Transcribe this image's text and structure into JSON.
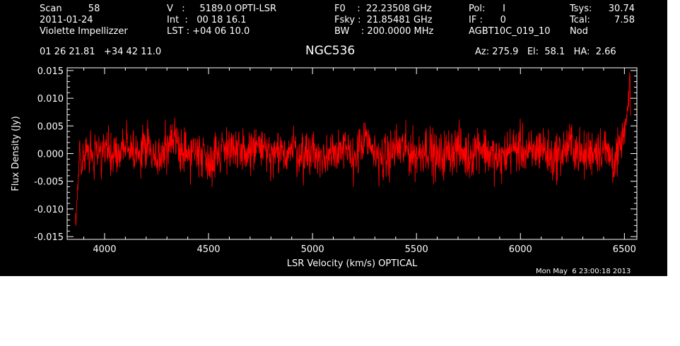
{
  "header": {
    "col1": [
      "Scan         58",
      "2011-01-24",
      "Violette Impellizzer"
    ],
    "col2": [
      "V   :     5189.0 OPTI-LSR",
      "Int  :   00 18 16.1",
      "LST : +04 06 10.0"
    ],
    "col3": [
      "F0    :  22.23508 GHz",
      "Fsky :  21.85481 GHz",
      "BW    : 200.0000 MHz"
    ],
    "col4": [
      "Pol:      I",
      "IF :      0",
      "AGBT10C_019_10"
    ],
    "col5_labels": [
      "Tsys:",
      "Tcal:",
      "Nod"
    ],
    "col5_values": [
      "30.74",
      "7.58",
      ""
    ],
    "coords": "01 26 21.81   +34 42 11.0",
    "source": "NGC536",
    "pointing": "Az: 275.9   El:  58.1   HA:  2.66"
  },
  "footer": {
    "timestamp": "Mon May  6 23:00:18 2013"
  },
  "colors": {
    "background": "#000000",
    "axes": "#ffffff",
    "trace": "#ff0000"
  },
  "chart_data": {
    "type": "line",
    "xlabel": "LSR Velocity (km/s) OPTICAL",
    "ylabel": "Flux Density (Jy)",
    "xlim": [
      3820,
      6560
    ],
    "ylim": [
      -0.0155,
      0.0155
    ],
    "x_ticks": [
      4000,
      4500,
      5000,
      5500,
      6000,
      6500
    ],
    "x_tick_labels": [
      "4000",
      "4500",
      "5000",
      "5500",
      "6000",
      "6500"
    ],
    "y_ticks": [
      0.015,
      0.01,
      0.005,
      0.0,
      -0.005,
      -0.01,
      -0.015
    ],
    "y_tick_labels": [
      "0.015",
      "0.010",
      "0.005",
      "0.000",
      "-0.005",
      "-0.010",
      "-0.015"
    ],
    "series": [
      {
        "x": [
          3860,
          3870,
          3880,
          3890,
          3900,
          3920,
          3950,
          4000,
          4050,
          4100,
          4150,
          4200,
          4250,
          4300,
          4350,
          4400,
          4450,
          4500,
          4550,
          4600,
          4650,
          4700,
          4750,
          4800,
          4850,
          4900,
          4950,
          5000,
          5050,
          5100,
          5150,
          5200,
          5250,
          5300,
          5350,
          5400,
          5450,
          5500,
          5550,
          5600,
          5650,
          5700,
          5750,
          5800,
          5850,
          5900,
          5950,
          6000,
          6050,
          6100,
          6150,
          6200,
          6250,
          6300,
          6350,
          6400,
          6450,
          6480,
          6500,
          6510,
          6520,
          6525,
          6530
        ],
        "y": [
          -0.0135,
          -0.007,
          0.001,
          -0.004,
          0.002,
          0.004,
          -0.001,
          0.003,
          -0.002,
          0.005,
          0.0,
          0.004,
          -0.003,
          0.002,
          0.006,
          -0.001,
          0.003,
          -0.004,
          0.001,
          0.005,
          -0.002,
          0.002,
          0.004,
          -0.003,
          0.0,
          0.003,
          -0.001,
          0.002,
          -0.004,
          0.004,
          0.001,
          -0.002,
          0.006,
          0.0,
          -0.003,
          0.003,
          0.002,
          -0.001,
          0.004,
          -0.003,
          0.001,
          0.003,
          -0.002,
          0.005,
          0.0,
          -0.004,
          0.002,
          0.003,
          -0.001,
          0.004,
          -0.003,
          0.001,
          0.005,
          -0.002,
          0.002,
          0.003,
          -0.004,
          0.001,
          0.004,
          0.006,
          0.009,
          0.0135,
          0.007
        ]
      }
    ]
  }
}
